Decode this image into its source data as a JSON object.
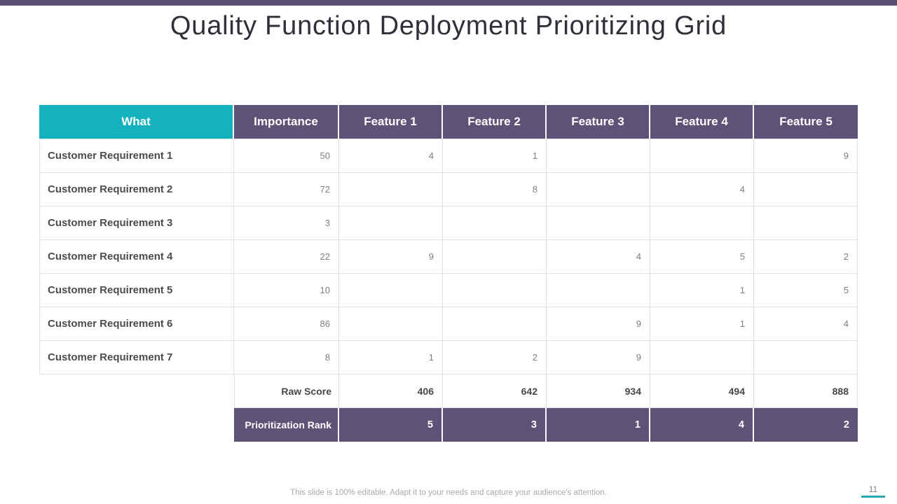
{
  "slide": {
    "title": "Quality Function Deployment Prioritizing Grid",
    "footer_note": "This slide is 100% editable. Adapt it to your needs and capture your audience's attention.",
    "page_number": "11"
  },
  "colors": {
    "accent_teal": "#14b2bd",
    "accent_purple": "#5e5377",
    "top_bar_purple": "#584f70",
    "cell_border": "#e2e2e2",
    "page_underline_teal": "#2aa9b5"
  },
  "table": {
    "columns": [
      "What",
      "Importance",
      "Feature 1",
      "Feature 2",
      "Feature 3",
      "Feature 4",
      "Feature 5"
    ],
    "rows": [
      {
        "label": "Customer Requirement 1",
        "importance": "50",
        "features": [
          "4",
          "1",
          "",
          "",
          "9"
        ]
      },
      {
        "label": "Customer Requirement 2",
        "importance": "72",
        "features": [
          "",
          "8",
          "",
          "4",
          ""
        ]
      },
      {
        "label": "Customer Requirement 3",
        "importance": "3",
        "features": [
          "",
          "",
          "",
          "",
          ""
        ]
      },
      {
        "label": "Customer Requirement 4",
        "importance": "22",
        "features": [
          "9",
          "",
          "4",
          "5",
          "2"
        ]
      },
      {
        "label": "Customer Requirement 5",
        "importance": "10",
        "features": [
          "",
          "",
          "",
          "1",
          "5"
        ]
      },
      {
        "label": "Customer Requirement 6",
        "importance": "86",
        "features": [
          "",
          "",
          "9",
          "1",
          "4"
        ]
      },
      {
        "label": "Customer Requirement 7",
        "importance": "8",
        "features": [
          "1",
          "2",
          "9",
          "",
          ""
        ]
      }
    ],
    "raw_score": {
      "label": "Raw Score",
      "values": [
        "406",
        "642",
        "934",
        "494",
        "888"
      ]
    },
    "prioritization_rank": {
      "label": "Prioritization Rank",
      "values": [
        "5",
        "3",
        "1",
        "4",
        "2"
      ]
    }
  }
}
